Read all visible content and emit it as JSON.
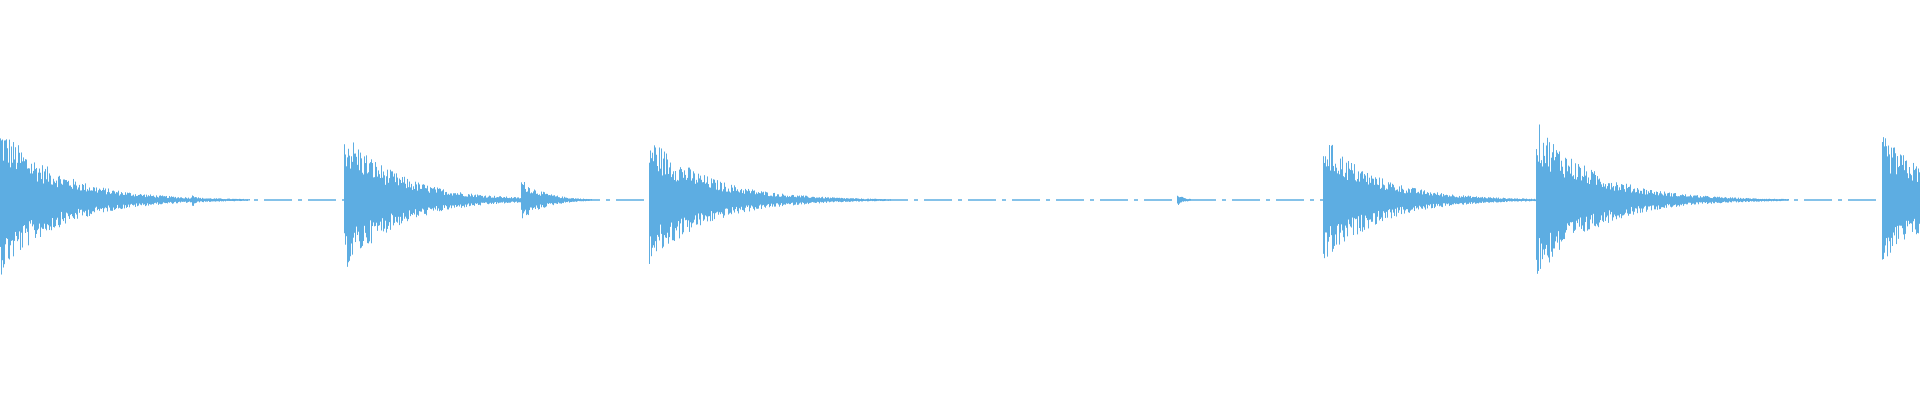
{
  "waveform": {
    "color": "#5dade2",
    "background": "#ffffff",
    "bursts": [
      {
        "onset_fraction": 0.0,
        "peak_amplitude": 0.38,
        "decay": 0.03
      },
      {
        "onset_fraction": 0.1,
        "peak_amplitude": 0.04,
        "decay": 0.003
      },
      {
        "onset_fraction": 0.179,
        "peak_amplitude": 0.36,
        "decay": 0.028
      },
      {
        "onset_fraction": 0.271,
        "peak_amplitude": 0.11,
        "decay": 0.012
      },
      {
        "onset_fraction": 0.338,
        "peak_amplitude": 0.33,
        "decay": 0.03
      },
      {
        "onset_fraction": 0.613,
        "peak_amplitude": 0.03,
        "decay": 0.004
      },
      {
        "onset_fraction": 0.689,
        "peak_amplitude": 0.33,
        "decay": 0.028
      },
      {
        "onset_fraction": 0.8,
        "peak_amplitude": 0.4,
        "decay": 0.03
      },
      {
        "onset_fraction": 0.98,
        "peak_amplitude": 0.33,
        "decay": 0.03
      }
    ]
  }
}
